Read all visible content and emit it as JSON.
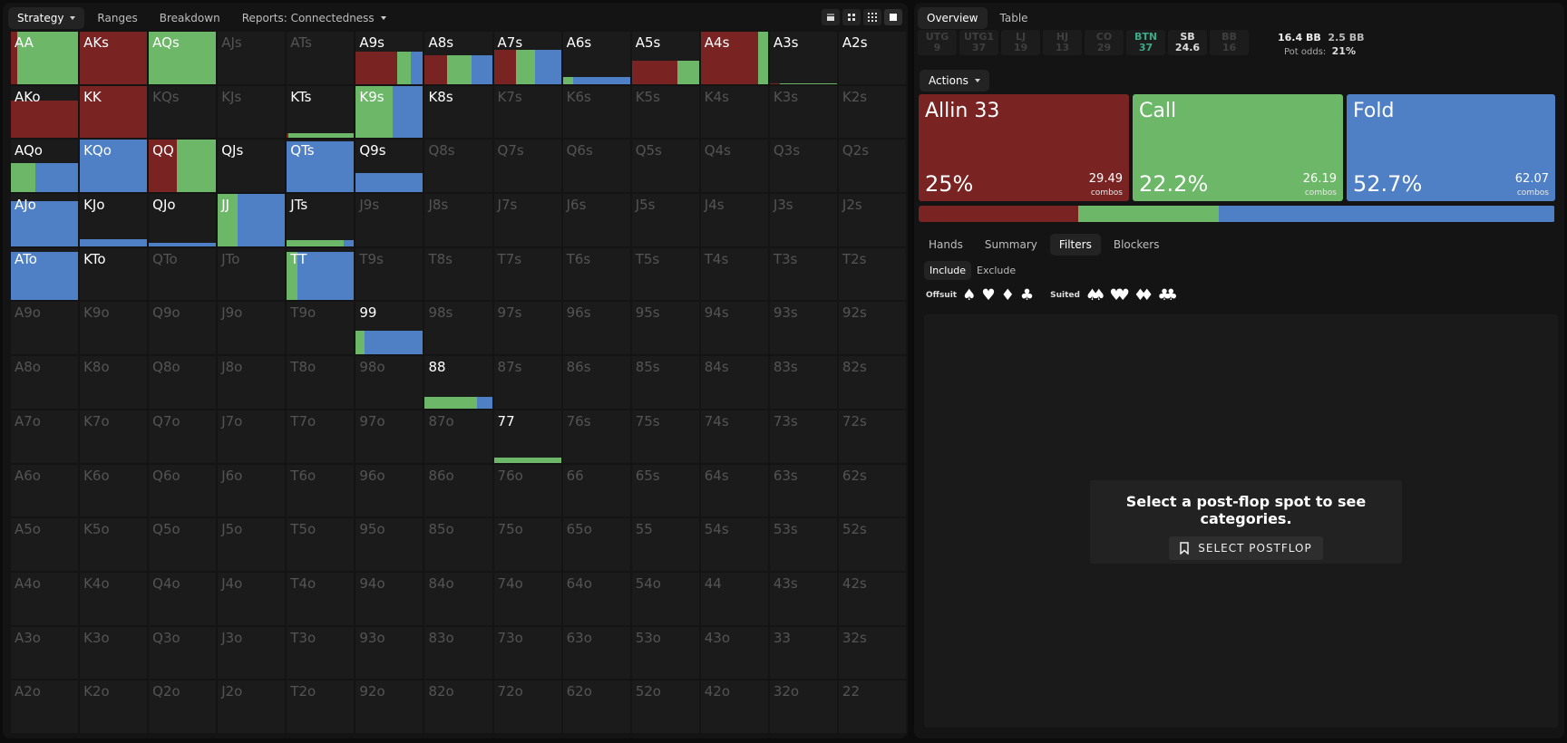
{
  "top_tabs": [
    {
      "label": "Strategy",
      "active": true,
      "dropdown": true
    },
    {
      "label": "Ranges"
    },
    {
      "label": "Breakdown"
    },
    {
      "label": "Reports: Connectedness",
      "dropdown": true
    }
  ],
  "view_buttons": [
    "single-view-icon",
    "split-view-icon",
    "grid-view-icon",
    "full-view-icon"
  ],
  "colors": {
    "allin": "#7a2323",
    "call": "#6cb868",
    "fold": "#4f80c6",
    "button_seat": "#3fa98a"
  },
  "grid_cells": [
    [
      "AA",
      "AKs",
      "AQs",
      "AJs",
      "ATs",
      "A9s",
      "A8s",
      "A7s",
      "A6s",
      "A5s",
      "A4s",
      "A3s",
      "A2s"
    ],
    [
      "AKo",
      "KK",
      "KQs",
      "KJs",
      "KTs",
      "K9s",
      "K8s",
      "K7s",
      "K6s",
      "K5s",
      "K4s",
      "K3s",
      "K2s"
    ],
    [
      "AQo",
      "KQo",
      "QQ",
      "QJs",
      "QTs",
      "Q9s",
      "Q8s",
      "Q7s",
      "Q6s",
      "Q5s",
      "Q4s",
      "Q3s",
      "Q2s"
    ],
    [
      "AJo",
      "KJo",
      "QJo",
      "JJ",
      "JTs",
      "J9s",
      "J8s",
      "J7s",
      "J6s",
      "J5s",
      "J4s",
      "J3s",
      "J2s"
    ],
    [
      "ATo",
      "KTo",
      "QTo",
      "JTo",
      "TT",
      "T9s",
      "T8s",
      "T7s",
      "T6s",
      "T5s",
      "T4s",
      "T3s",
      "T2s"
    ],
    [
      "A9o",
      "K9o",
      "Q9o",
      "J9o",
      "T9o",
      "99",
      "98s",
      "97s",
      "96s",
      "95s",
      "94s",
      "93s",
      "92s"
    ],
    [
      "A8o",
      "K8o",
      "Q8o",
      "J8o",
      "T8o",
      "98o",
      "88",
      "87s",
      "86s",
      "85s",
      "84s",
      "83s",
      "82s"
    ],
    [
      "A7o",
      "K7o",
      "Q7o",
      "J7o",
      "T7o",
      "97o",
      "87o",
      "77",
      "76s",
      "75s",
      "74s",
      "73s",
      "72s"
    ],
    [
      "A6o",
      "K6o",
      "Q6o",
      "J6o",
      "T6o",
      "96o",
      "86o",
      "76o",
      "66",
      "65s",
      "64s",
      "63s",
      "62s"
    ],
    [
      "A5o",
      "K5o",
      "Q5o",
      "J5o",
      "T5o",
      "95o",
      "85o",
      "75o",
      "65o",
      "55",
      "54s",
      "53s",
      "52s"
    ],
    [
      "A4o",
      "K4o",
      "Q4o",
      "J4o",
      "T4o",
      "94o",
      "84o",
      "74o",
      "64o",
      "54o",
      "44",
      "43s",
      "42s"
    ],
    [
      "A3o",
      "K3o",
      "Q3o",
      "J3o",
      "T3o",
      "93o",
      "83o",
      "73o",
      "63o",
      "53o",
      "43o",
      "33",
      "32s"
    ],
    [
      "A2o",
      "K2o",
      "Q2o",
      "J2o",
      "T2o",
      "92o",
      "82o",
      "72o",
      "62o",
      "52o",
      "42o",
      "32o",
      "22"
    ]
  ],
  "hand_strategies": {
    "AA": {
      "fill": 1,
      "allin": 0.1,
      "call": 0.9,
      "fold": 0
    },
    "AKs": {
      "fill": 1,
      "allin": 1,
      "call": 0,
      "fold": 0
    },
    "AQs": {
      "fill": 1,
      "allin": 0,
      "call": 1,
      "fold": 0
    },
    "A9s": {
      "fill": 0.62,
      "allin": 0.62,
      "call": 0.2,
      "fold": 0.18
    },
    "A8s": {
      "fill": 0.55,
      "allin": 0.33,
      "call": 0.37,
      "fold": 0.3
    },
    "A7s": {
      "fill": 0.65,
      "allin": 0.33,
      "call": 0.28,
      "fold": 0.39
    },
    "A6s": {
      "fill": 0.14,
      "allin": 0,
      "call": 0.15,
      "fold": 0.85
    },
    "A5s": {
      "fill": 0.45,
      "allin": 0.68,
      "call": 0.32,
      "fold": 0
    },
    "A4s": {
      "fill": 1,
      "allin": 0.85,
      "call": 0.15,
      "fold": 0
    },
    "A3s": {
      "fill": 0.02,
      "allin": 0.15,
      "call": 0.85,
      "fold": 0
    },
    "AKo": {
      "fill": 0.72,
      "allin": 1,
      "call": 0,
      "fold": 0
    },
    "KK": {
      "fill": 1,
      "allin": 1,
      "call": 0,
      "fold": 0
    },
    "KTs": {
      "fill": 0.1,
      "allin": 0.02,
      "call": 0.98,
      "fold": 0
    },
    "K9s": {
      "fill": 1,
      "allin": 0,
      "call": 0.55,
      "fold": 0.45
    },
    "AQo": {
      "fill": 0.55,
      "allin": 0,
      "call": 0.37,
      "fold": 0.63
    },
    "KQo": {
      "fill": 1,
      "allin": 0,
      "call": 0,
      "fold": 1
    },
    "QQ": {
      "fill": 1,
      "allin": 0.42,
      "call": 0.58,
      "fold": 0
    },
    "QTs": {
      "fill": 0.97,
      "allin": 0,
      "call": 0,
      "fold": 1
    },
    "Q9s": {
      "fill": 0.37,
      "allin": 0,
      "call": 0,
      "fold": 1
    },
    "AJo": {
      "fill": 0.86,
      "allin": 0,
      "call": 0,
      "fold": 1
    },
    "KJo": {
      "fill": 0.14,
      "allin": 0,
      "call": 0,
      "fold": 1
    },
    "QJo": {
      "fill": 0.06,
      "allin": 0,
      "call": 0,
      "fold": 1
    },
    "JJ": {
      "fill": 1,
      "allin": 0,
      "call": 0.3,
      "fold": 0.7
    },
    "JTs": {
      "fill": 0.12,
      "allin": 0,
      "call": 0.85,
      "fold": 0.15
    },
    "ATo": {
      "fill": 0.93,
      "allin": 0,
      "call": 0,
      "fold": 1
    },
    "TT": {
      "fill": 0.93,
      "allin": 0,
      "call": 0.16,
      "fold": 0.84
    },
    "99": {
      "fill": 0.45,
      "allin": 0,
      "call": 0.13,
      "fold": 0.87
    },
    "88": {
      "fill": 0.22,
      "allin": 0,
      "call": 0.78,
      "fold": 0.22
    },
    "77": {
      "fill": 0.1,
      "allin": 0,
      "call": 1,
      "fold": 0
    }
  },
  "active_hands": [
    "AA",
    "AKs",
    "AQs",
    "A9s",
    "A8s",
    "A7s",
    "A6s",
    "A5s",
    "A4s",
    "A3s",
    "A2s",
    "AKo",
    "KK",
    "KTs",
    "K9s",
    "K8s",
    "AQo",
    "KQo",
    "QQ",
    "QJs",
    "QTs",
    "Q9s",
    "AJo",
    "KJo",
    "QJo",
    "JJ",
    "JTs",
    "ATo",
    "KTo",
    "TT",
    "99",
    "88",
    "77"
  ],
  "right_tabs": [
    {
      "label": "Overview",
      "active": true
    },
    {
      "label": "Table"
    }
  ],
  "seats": [
    {
      "pos": "UTG",
      "stack": "9"
    },
    {
      "pos": "UTG1",
      "stack": "37"
    },
    {
      "pos": "LJ",
      "stack": "19"
    },
    {
      "pos": "HJ",
      "stack": "13"
    },
    {
      "pos": "CO",
      "stack": "29"
    },
    {
      "pos": "BTN",
      "stack": "37"
    },
    {
      "pos": "SB",
      "stack": "24.6"
    },
    {
      "pos": "BB",
      "stack": "16"
    }
  ],
  "pot": {
    "bb": "16.4 BB",
    "raise": "2.5 BB",
    "odds_label": "Pot odds:",
    "odds_value": "21%"
  },
  "actions_dropdown": "Actions",
  "actions": [
    {
      "name": "Allin 33",
      "pct": "25%",
      "combos": "29.49",
      "combos_label": "combos",
      "share": 25
    },
    {
      "name": "Call",
      "pct": "22.2%",
      "combos": "26.19",
      "combos_label": "combos",
      "share": 22.2
    },
    {
      "name": "Fold",
      "pct": "52.7%",
      "combos": "62.07",
      "combos_label": "combos",
      "share": 52.7
    }
  ],
  "sub_tabs": [
    {
      "label": "Hands"
    },
    {
      "label": "Summary"
    },
    {
      "label": "Filters",
      "active": true
    },
    {
      "label": "Blockers"
    }
  ],
  "filter_tabs": [
    {
      "label": "Include",
      "active": true
    },
    {
      "label": "Exclude"
    }
  ],
  "filters": {
    "offsuit_label": "Offsuit",
    "suited_label": "Suited",
    "offsuit_suits": [
      "♠",
      "♥",
      "♦",
      "♣"
    ],
    "suited_suits": [
      "♠♠",
      "♥♥",
      "♦♦",
      "♣♣"
    ]
  },
  "postflop": {
    "message": "Select a post-flop spot to see categories.",
    "button": "SELECT POSTFLOP"
  }
}
